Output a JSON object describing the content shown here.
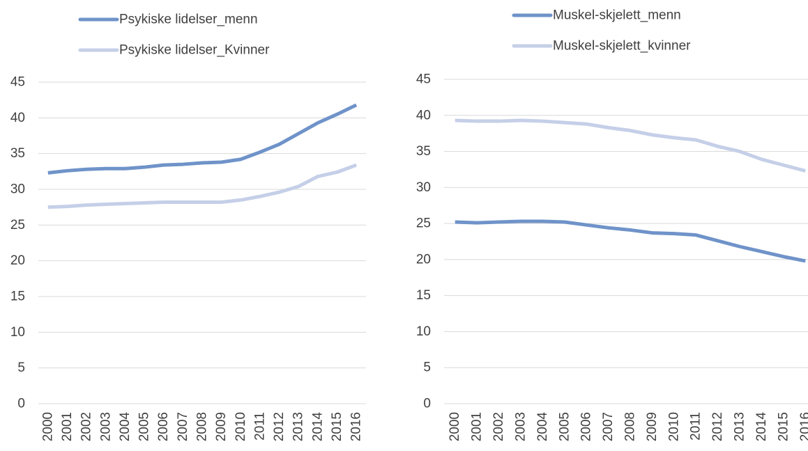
{
  "chart_data": [
    {
      "type": "line",
      "categories": [
        "2000",
        "2001",
        "2002",
        "2003",
        "2004",
        "2005",
        "2006",
        "2007",
        "2008",
        "2009",
        "2010",
        "2011",
        "2012",
        "2013",
        "2014",
        "2015",
        "2016"
      ],
      "series": [
        {
          "name": "Psykiske lidelser_menn",
          "color": "#6f93c9",
          "values": [
            32.3,
            32.6,
            32.8,
            32.9,
            32.9,
            33.1,
            33.4,
            33.5,
            33.7,
            33.8,
            34.2,
            35.2,
            36.3,
            37.8,
            39.3,
            40.5,
            41.8
          ]
        },
        {
          "name": "Psykiske lidelser_Kvinner",
          "color": "#c5cfe8",
          "values": [
            27.5,
            27.6,
            27.8,
            27.9,
            28.0,
            28.1,
            28.2,
            28.2,
            28.2,
            28.2,
            28.5,
            29.0,
            29.6,
            30.4,
            31.8,
            32.4,
            33.4
          ]
        }
      ],
      "ylim": [
        0,
        45
      ],
      "yticks": [
        0,
        5,
        10,
        15,
        20,
        25,
        30,
        35,
        40,
        45
      ],
      "grid": true,
      "legend": "top"
    },
    {
      "type": "line",
      "categories": [
        "2000",
        "2001",
        "2002",
        "2003",
        "2004",
        "2005",
        "2006",
        "2007",
        "2008",
        "2009",
        "2010",
        "2011",
        "2012",
        "2013",
        "2014",
        "2015",
        "2016"
      ],
      "series": [
        {
          "name": "Muskel-skjelett_menn",
          "color": "#6f93c9",
          "values": [
            25.2,
            25.1,
            25.2,
            25.3,
            25.3,
            25.2,
            24.8,
            24.4,
            24.1,
            23.7,
            23.6,
            23.4,
            22.6,
            21.8,
            21.1,
            20.4,
            19.8
          ]
        },
        {
          "name": "Muskel-skjelett_kvinner",
          "color": "#c5cfe8",
          "values": [
            39.3,
            39.2,
            39.2,
            39.3,
            39.2,
            39.0,
            38.8,
            38.3,
            37.9,
            37.3,
            36.9,
            36.6,
            35.7,
            35.0,
            33.9,
            33.1,
            32.3
          ]
        }
      ],
      "ylim": [
        0,
        45
      ],
      "yticks": [
        0,
        5,
        10,
        15,
        20,
        25,
        30,
        35,
        40,
        45
      ],
      "grid": true,
      "legend": "top"
    }
  ]
}
